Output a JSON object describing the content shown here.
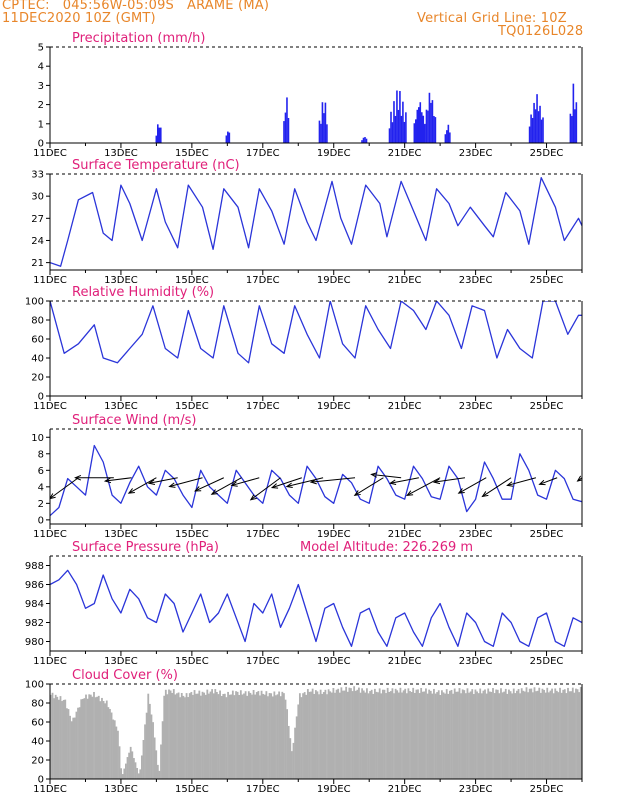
{
  "header": {
    "line1_left": "CPTEC:   045:56W-05:09S   ARAME (MA)",
    "line2_left": "11DEC2020 10Z (GMT)",
    "line1_right": "Vertical Grid Line: 10Z",
    "line2_right": "TQ0126L028"
  },
  "colors": {
    "header": "#e8862a",
    "title": "#e0207a",
    "series": "#2b35d9",
    "bars": "#2222ee",
    "cloud": "#b0b0b0",
    "arrows": "#000000"
  },
  "x_tick_labels": [
    "11DEC",
    "13DEC",
    "15DEC",
    "17DEC",
    "19DEC",
    "21DEC",
    "23DEC",
    "25DEC"
  ],
  "chart_data": [
    {
      "id": "precip",
      "type": "bar",
      "title": "Precipitation (mm/h)",
      "ylim": [
        0,
        5
      ],
      "yticks": [
        0,
        1,
        2,
        3,
        4,
        5
      ],
      "events": [
        {
          "day": 14.05,
          "width": 0.15,
          "max": 1.3
        },
        {
          "day": 16.0,
          "width": 0.1,
          "max": 0.9
        },
        {
          "day": 17.65,
          "width": 0.15,
          "max": 2.7
        },
        {
          "day": 18.7,
          "width": 0.25,
          "max": 2.6
        },
        {
          "day": 19.85,
          "width": 0.15,
          "max": 0.4
        },
        {
          "day": 20.8,
          "width": 0.5,
          "max": 3.0
        },
        {
          "day": 21.4,
          "width": 0.3,
          "max": 2.5
        },
        {
          "day": 21.7,
          "width": 0.3,
          "max": 3.0
        },
        {
          "day": 22.2,
          "width": 0.15,
          "max": 1.1
        },
        {
          "day": 24.7,
          "width": 0.4,
          "max": 2.7
        },
        {
          "day": 25.75,
          "width": 0.2,
          "max": 3.4
        }
      ]
    },
    {
      "id": "temp",
      "type": "line",
      "title": "Surface Temperature (nC)",
      "ylim": [
        20,
        33
      ],
      "yticks": [
        21,
        24,
        27,
        30,
        33
      ],
      "x": [
        11.0,
        11.3,
        11.5,
        11.8,
        12.2,
        12.5,
        12.75,
        13.0,
        13.25,
        13.6,
        14.0,
        14.25,
        14.6,
        14.9,
        15.3,
        15.6,
        15.9,
        16.3,
        16.6,
        16.9,
        17.25,
        17.6,
        17.9,
        18.25,
        18.5,
        18.95,
        19.2,
        19.5,
        19.9,
        20.3,
        20.5,
        20.9,
        21.25,
        21.6,
        21.9,
        22.25,
        22.5,
        22.85,
        23.25,
        23.5,
        23.85,
        24.25,
        24.5,
        24.85,
        25.25,
        25.5,
        25.9,
        26.0
      ],
      "y": [
        21,
        20.5,
        24,
        29.5,
        30.5,
        25,
        24,
        31.5,
        29,
        24,
        31,
        26.5,
        23,
        31.5,
        28.5,
        22.8,
        31,
        28.5,
        23,
        31,
        28,
        23.5,
        31,
        26.5,
        24,
        32,
        27,
        23.5,
        31.5,
        29,
        24.5,
        32,
        28,
        24,
        31,
        29,
        26,
        28.5,
        26,
        24.5,
        30.5,
        28,
        23.5,
        32.5,
        28.5,
        24,
        27,
        26
      ]
    },
    {
      "id": "rh",
      "type": "line",
      "title": "Relative Humidity (%)",
      "ylim": [
        0,
        100
      ],
      "yticks": [
        0,
        20,
        40,
        60,
        80,
        100
      ],
      "x": [
        11.0,
        11.4,
        11.8,
        12.25,
        12.5,
        12.9,
        13.25,
        13.6,
        13.9,
        14.25,
        14.6,
        14.9,
        15.25,
        15.6,
        15.9,
        16.3,
        16.6,
        16.9,
        17.25,
        17.6,
        17.9,
        18.25,
        18.6,
        18.9,
        19.25,
        19.6,
        19.9,
        20.25,
        20.6,
        20.9,
        21.25,
        21.6,
        21.9,
        22.25,
        22.6,
        22.9,
        23.25,
        23.6,
        23.9,
        24.25,
        24.6,
        24.9,
        25.25,
        25.6,
        25.9,
        26.0
      ],
      "y": [
        100,
        45,
        55,
        75,
        40,
        35,
        50,
        65,
        95,
        50,
        40,
        90,
        50,
        40,
        95,
        45,
        35,
        95,
        55,
        45,
        95,
        65,
        40,
        100,
        55,
        40,
        95,
        70,
        50,
        100,
        90,
        70,
        100,
        85,
        50,
        95,
        90,
        40,
        70,
        50,
        40,
        100,
        100,
        65,
        85,
        85
      ]
    },
    {
      "id": "wind",
      "type": "line",
      "title": "Surface Wind (m/s)",
      "ylim": [
        -0.5,
        11
      ],
      "yticks": [
        0,
        2,
        4,
        6,
        8,
        10
      ],
      "x": [
        11.0,
        11.25,
        11.5,
        11.75,
        12.0,
        12.25,
        12.5,
        12.75,
        13.0,
        13.25,
        13.5,
        13.75,
        14.0,
        14.25,
        14.5,
        14.75,
        15.0,
        15.25,
        15.5,
        15.75,
        16.0,
        16.25,
        16.5,
        16.75,
        17.0,
        17.25,
        17.5,
        17.75,
        18.0,
        18.25,
        18.5,
        18.75,
        19.0,
        19.25,
        19.5,
        19.75,
        20.0,
        20.25,
        20.5,
        20.75,
        21.0,
        21.25,
        21.5,
        21.75,
        22.0,
        22.25,
        22.5,
        22.75,
        23.0,
        23.25,
        23.5,
        23.75,
        24.0,
        24.25,
        24.5,
        24.75,
        25.0,
        25.25,
        25.5,
        25.75,
        26.0
      ],
      "y": [
        0.5,
        1.5,
        5,
        4,
        3,
        9,
        7,
        3,
        2,
        4.5,
        6.5,
        4,
        3,
        6,
        5,
        3,
        1.5,
        6,
        4,
        3,
        2,
        6,
        4.5,
        3,
        2,
        6,
        5,
        3,
        2,
        6.5,
        5,
        2.8,
        2,
        5.5,
        4.5,
        2.5,
        2,
        6.5,
        5,
        3,
        2.5,
        6.5,
        5,
        2.8,
        2.5,
        6.5,
        5,
        1,
        2.5,
        7,
        5,
        2.5,
        2.5,
        8,
        6,
        3,
        2.5,
        6,
        5,
        2.5,
        2.2
      ],
      "arrows": [
        {
          "day": 11.8,
          "u": -2.6,
          "v": -1.9
        },
        {
          "day": 12.8,
          "u": -3.5,
          "v": 0
        },
        {
          "day": 13.3,
          "u": -2.4,
          "v": -0.3
        },
        {
          "day": 14.0,
          "u": -2.5,
          "v": -1.4
        },
        {
          "day": 14.6,
          "u": -2.6,
          "v": -0.5
        },
        {
          "day": 15.3,
          "u": -3.0,
          "v": -0.8
        },
        {
          "day": 15.9,
          "u": -2.6,
          "v": -1.2
        },
        {
          "day": 16.4,
          "u": -2.7,
          "v": -1.5
        },
        {
          "day": 16.9,
          "u": -2.5,
          "v": -0.7
        },
        {
          "day": 17.5,
          "u": -2.7,
          "v": -2.0
        },
        {
          "day": 18.1,
          "u": -2.7,
          "v": -0.9
        },
        {
          "day": 18.7,
          "u": -3.3,
          "v": -0.8
        },
        {
          "day": 19.6,
          "u": -4.0,
          "v": -0.4
        },
        {
          "day": 20.4,
          "u": -2.6,
          "v": -1.6
        },
        {
          "day": 20.9,
          "u": -2.7,
          "v": 0.3
        },
        {
          "day": 21.4,
          "u": -2.6,
          "v": -0.5
        },
        {
          "day": 22.0,
          "u": -3.0,
          "v": -1.6
        },
        {
          "day": 22.7,
          "u": -2.8,
          "v": -0.4
        },
        {
          "day": 23.3,
          "u": -2.5,
          "v": -1.4
        },
        {
          "day": 24.0,
          "u": -2.6,
          "v": -1.7
        },
        {
          "day": 24.7,
          "u": -2.6,
          "v": -0.7
        },
        {
          "day": 25.3,
          "u": -1.6,
          "v": -0.6
        },
        {
          "day": 26.0,
          "u": -0.4,
          "v": -0.3
        }
      ]
    },
    {
      "id": "pres",
      "type": "line",
      "title": "Surface Pressure (hPa)",
      "annotation": "Model Altitude: 226.269 m",
      "ylim": [
        979,
        989
      ],
      "yticks": [
        980,
        982,
        984,
        986,
        988
      ],
      "x": [
        11.0,
        11.25,
        11.5,
        11.75,
        12.0,
        12.25,
        12.5,
        12.75,
        13.0,
        13.25,
        13.5,
        13.75,
        14.0,
        14.25,
        14.5,
        14.75,
        15.0,
        15.25,
        15.5,
        15.75,
        16.0,
        16.25,
        16.5,
        16.75,
        17.0,
        17.25,
        17.5,
        17.75,
        18.0,
        18.25,
        18.5,
        18.75,
        19.0,
        19.25,
        19.5,
        19.75,
        20.0,
        20.25,
        20.5,
        20.75,
        21.0,
        21.25,
        21.5,
        21.75,
        22.0,
        22.25,
        22.5,
        22.75,
        23.0,
        23.25,
        23.5,
        23.75,
        24.0,
        24.25,
        24.5,
        24.75,
        25.0,
        25.25,
        25.5,
        25.75,
        26.0
      ],
      "y": [
        986,
        986.5,
        987.5,
        986,
        983.5,
        984,
        987,
        984.5,
        983,
        985.5,
        984.5,
        982.5,
        982,
        985,
        984,
        981,
        983,
        985,
        982,
        983,
        985,
        982.5,
        980,
        984,
        983,
        985,
        981.5,
        983.5,
        986,
        983,
        980,
        983.5,
        984,
        981.5,
        979.5,
        983,
        983.5,
        981,
        979.5,
        982.5,
        983,
        981,
        979.5,
        982.5,
        984,
        981.5,
        979.5,
        983,
        982,
        980,
        979.5,
        983,
        982,
        980,
        979.5,
        982.5,
        983,
        980,
        979.5,
        982.5,
        982
      ]
    },
    {
      "id": "cloud",
      "type": "area",
      "title": "Cloud Cover (%)",
      "ylim": [
        0,
        100
      ],
      "yticks": [
        0,
        20,
        40,
        60,
        80,
        100
      ],
      "x": [
        11.0,
        11.4,
        11.6,
        11.9,
        12.2,
        12.6,
        12.9,
        13.0,
        13.25,
        13.5,
        13.75,
        13.9,
        14.05,
        14.2,
        14.4,
        14.6,
        14.8,
        15.0,
        15.3,
        15.6,
        15.9,
        16.2,
        16.5,
        16.8,
        17.2,
        17.6,
        17.8,
        18.0,
        18.3,
        18.6,
        19.0,
        19.5,
        20.0,
        20.5,
        21.0,
        21.5,
        22.0,
        22.5,
        23.0,
        23.5,
        24.0,
        24.5,
        25.0,
        25.5,
        26.0
      ],
      "y": [
        92,
        85,
        62,
        88,
        92,
        82,
        52,
        2,
        35,
        3,
        92,
        55,
        3,
        94,
        96,
        92,
        90,
        94,
        93,
        96,
        91,
        94,
        93,
        94,
        92,
        93,
        28,
        90,
        96,
        94,
        96,
        98,
        95,
        96,
        96,
        96,
        94,
        96,
        95,
        96,
        95,
        97,
        96,
        96,
        97
      ]
    }
  ]
}
